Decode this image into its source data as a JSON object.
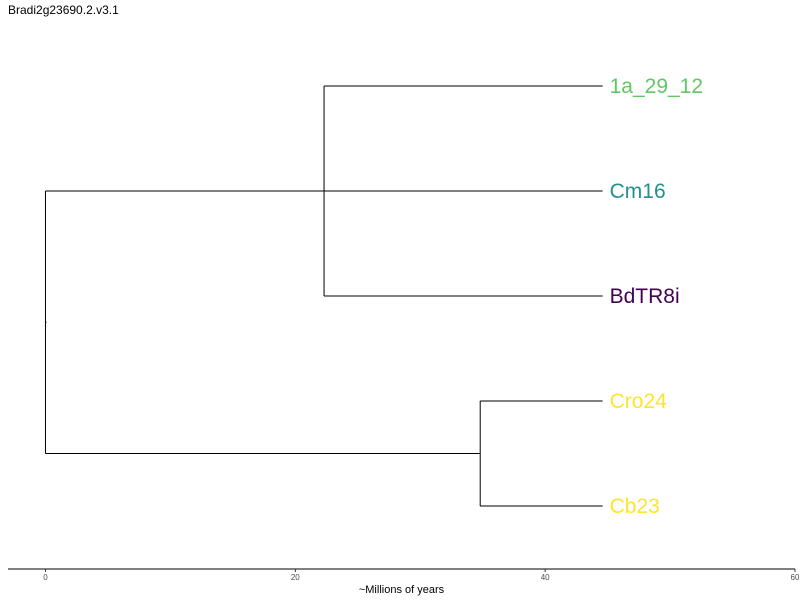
{
  "title": "Bradi2g23690.2.v3.1",
  "axis": {
    "title": "~Millions of years",
    "ticks": [
      0,
      20,
      40,
      60
    ],
    "xlim": [
      -3,
      60
    ]
  },
  "tree": {
    "nodes": [
      {
        "id": "root",
        "x": 0
      },
      {
        "id": "n1",
        "x": 22.3,
        "parent": "root"
      },
      {
        "id": "n2",
        "x": 34.8,
        "parent": "root"
      },
      {
        "id": "1a_29_12",
        "x": 44.6,
        "parent": "n1",
        "leaf": true
      },
      {
        "id": "Cm16",
        "x": 44.6,
        "parent": "root",
        "leaf": true
      },
      {
        "id": "BdTR8i",
        "x": 44.6,
        "parent": "n1",
        "leaf": true
      },
      {
        "id": "Cro24",
        "x": 44.6,
        "parent": "n2",
        "leaf": true
      },
      {
        "id": "Cb23",
        "x": 44.6,
        "parent": "n2",
        "leaf": true
      }
    ],
    "leaves": [
      {
        "label": "1a_29_12",
        "color": "#5ec962"
      },
      {
        "label": "Cm16",
        "color": "#21918c"
      },
      {
        "label": "BdTR8i",
        "color": "#440154"
      },
      {
        "label": "Cro24",
        "color": "#fde725"
      },
      {
        "label": "Cb23",
        "color": "#fde725"
      }
    ]
  },
  "colors": {
    "branch": "#000000",
    "axis": "#000000"
  }
}
